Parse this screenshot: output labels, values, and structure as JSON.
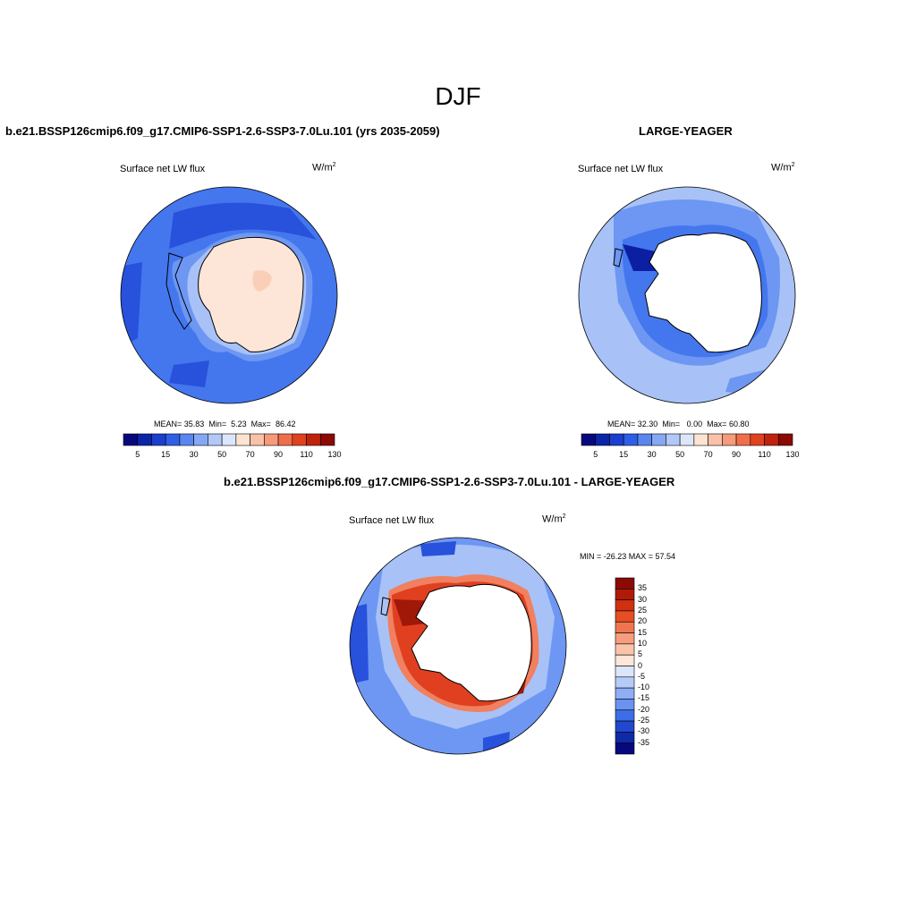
{
  "figure": {
    "title": "DJF",
    "units_base": "W/m",
    "units_exp": "2",
    "variable": "Surface net LW flux"
  },
  "panels": [
    {
      "id": "model",
      "title": "b.e21.BSSP126cmip6.f09_g17.CMIP6-SSP1-2.6-SSP3-7.0Lu.101 (yrs 2035-2059)",
      "stats": {
        "mean_label": "MEAN=",
        "mean": "35.83",
        "min_label": "Min=",
        "min": "5.23",
        "max_label": "Max=",
        "max": "86.42"
      }
    },
    {
      "id": "obs",
      "title": "LARGE-YEAGER",
      "stats": {
        "mean_label": "MEAN=",
        "mean": "32.30",
        "min_label": "Min=",
        "min": "0.00",
        "max_label": "Max=",
        "max": "60.80"
      }
    },
    {
      "id": "diff",
      "title": "b.e21.BSSP126cmip6.f09_g17.CMIP6-SSP1-2.6-SSP3-7.0Lu.101 - LARGE-YEAGER",
      "minmax_text": "MIN = -26.23  MAX =  57.54"
    }
  ],
  "colorbar_abs": {
    "tick_labels": [
      "5",
      "15",
      "30",
      "50",
      "70",
      "90",
      "110",
      "130"
    ],
    "colors": [
      "#08087e",
      "#0b24a8",
      "#1a3fce",
      "#2f5fe6",
      "#5b86ef",
      "#86a8f4",
      "#b1c8f8",
      "#dbe6fb",
      "#fde4d2",
      "#f8c1a8",
      "#f59a7a",
      "#ef6e4c",
      "#e0421f",
      "#c0230c",
      "#8c0a04"
    ]
  },
  "colorbar_diff": {
    "tick_labels": [
      "35",
      "30",
      "25",
      "20",
      "15",
      "10",
      "5",
      "0",
      "-5",
      "-10",
      "-15",
      "-20",
      "-25",
      "-30",
      "-35"
    ],
    "colors": [
      "#8c0a04",
      "#b01a08",
      "#d0300f",
      "#e64e25",
      "#f0754f",
      "#f59d7d",
      "#f9c4aa",
      "#fde7d8",
      "#dbe6fb",
      "#b5cbf8",
      "#8eaef5",
      "#6a92f0",
      "#3e6de8",
      "#2148cf",
      "#0f2aa5",
      "#08087e"
    ]
  },
  "map_colors": {
    "ocean_mid": "#4477ee",
    "ocean_light": "#6d97f2",
    "ocean_pale": "#a8c2f7",
    "ocean_dark": "#2851dc",
    "ocean_deep": "#0c1fa2",
    "land_warm": "#fde6d8",
    "land_warm2": "#f9cfb8",
    "land_white": "#ffffff",
    "red1": "#f08060",
    "red2": "#e04020",
    "red3": "#a01808"
  }
}
